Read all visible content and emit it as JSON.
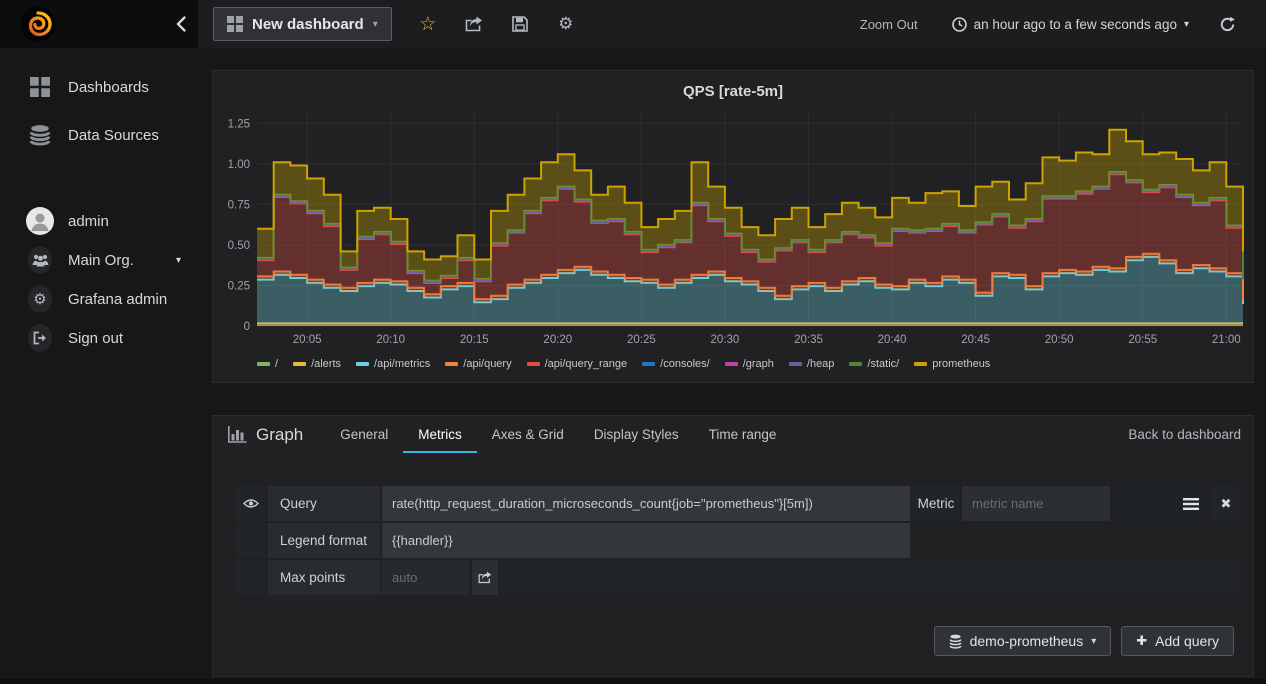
{
  "topnav": {
    "dashboard_title": "New dashboard",
    "zoom_out_label": "Zoom Out",
    "time_range_label": "an hour ago to a few seconds ago"
  },
  "sidebar": {
    "items": [
      "Dashboards",
      "Data Sources"
    ],
    "user": [
      "admin",
      "Main Org.",
      "Grafana admin",
      "Sign out"
    ]
  },
  "editor": {
    "panel_type": "Graph",
    "tabs": [
      "General",
      "Metrics",
      "Axes & Grid",
      "Display Styles",
      "Time range"
    ],
    "active_tab": "Metrics",
    "back_link": "Back to dashboard",
    "query_row": {
      "label": "Query",
      "value": "rate(http_request_duration_microseconds_count{job=\"prometheus\"}[5m])",
      "metric_label": "Metric",
      "metric_placeholder": "metric name"
    },
    "legend_row": {
      "label": "Legend format",
      "value": "{{handler}}"
    },
    "max_points_row": {
      "label": "Max points",
      "placeholder": "auto"
    },
    "datasource_button": "demo-prometheus",
    "add_query_button": "Add query"
  },
  "chart_data": {
    "type": "area",
    "stacked": true,
    "title": "QPS [rate-5m]",
    "xlabel": "",
    "ylabel": "",
    "x_start": "20:02",
    "x_step_minutes": 1,
    "x_ticks": [
      "20:05",
      "20:10",
      "20:15",
      "20:20",
      "20:25",
      "20:30",
      "20:35",
      "20:40",
      "20:45",
      "20:50",
      "20:55",
      "21:00"
    ],
    "x_tick_offsets": [
      3,
      8,
      13,
      18,
      23,
      28,
      33,
      38,
      43,
      48,
      53,
      58
    ],
    "y_ticks": [
      {
        "v": 0,
        "label": "0"
      },
      {
        "v": 0.25,
        "label": "0.25"
      },
      {
        "v": 0.5,
        "label": "0.50"
      },
      {
        "v": 0.75,
        "label": "0.75"
      },
      {
        "v": 1.0,
        "label": "1.00"
      },
      {
        "v": 1.25,
        "label": "1.25"
      }
    ],
    "ylim": [
      0,
      1.32
    ],
    "grid": true,
    "legend_position": "bottom",
    "series": [
      {
        "name": "/",
        "color": "#7EB26D",
        "flat": 0.004,
        "line_width": 1
      },
      {
        "name": "/alerts",
        "color": "#EAB839",
        "flat": 0.012,
        "line_width": 2
      },
      {
        "name": "/api/metrics",
        "color": "#6ED0E0",
        "line_width": 2,
        "values": [
          0.27,
          0.3,
          0.28,
          0.25,
          0.22,
          0.2,
          0.23,
          0.25,
          0.24,
          0.2,
          0.16,
          0.21,
          0.23,
          0.13,
          0.15,
          0.22,
          0.25,
          0.28,
          0.31,
          0.33,
          0.3,
          0.28,
          0.26,
          0.25,
          0.22,
          0.25,
          0.28,
          0.3,
          0.26,
          0.24,
          0.2,
          0.15,
          0.21,
          0.23,
          0.2,
          0.24,
          0.26,
          0.22,
          0.21,
          0.25,
          0.23,
          0.27,
          0.25,
          0.17,
          0.29,
          0.28,
          0.21,
          0.29,
          0.31,
          0.3,
          0.33,
          0.32,
          0.39,
          0.41,
          0.37,
          0.31,
          0.34,
          0.32,
          0.29,
          0.12
        ]
      },
      {
        "name": "/api/query",
        "color": "#EF843C",
        "flat": 0.02,
        "line_width": 2
      },
      {
        "name": "/api/query_range",
        "color": "#E24D42",
        "line_width": 2,
        "values": [
          0.1,
          0.46,
          0.44,
          0.41,
          0.36,
          0.11,
          0.27,
          0.28,
          0.23,
          0.09,
          0.07,
          0.05,
          0.14,
          0.11,
          0.31,
          0.32,
          0.41,
          0.46,
          0.5,
          0.4,
          0.3,
          0.33,
          0.27,
          0.17,
          0.23,
          0.23,
          0.43,
          0.31,
          0.26,
          0.18,
          0.16,
          0.28,
          0.27,
          0.19,
          0.28,
          0.29,
          0.25,
          0.24,
          0.34,
          0.29,
          0.32,
          0.31,
          0.29,
          0.42,
          0.35,
          0.29,
          0.4,
          0.46,
          0.44,
          0.48,
          0.48,
          0.58,
          0.46,
          0.38,
          0.45,
          0.45,
          0.37,
          0.42,
          0.28,
          0.13
        ]
      },
      {
        "name": "/consoles/",
        "color": "#1F78C1",
        "flat": 0.004,
        "line_width": 1
      },
      {
        "name": "/graph",
        "color": "#BA43A9",
        "flat": 0.003,
        "line_width": 1
      },
      {
        "name": "/heap",
        "color": "#705DA0",
        "flat": 0.003,
        "line_width": 1
      },
      {
        "name": "/static/",
        "color": "#508642",
        "flat": 0.004,
        "line_width": 2
      },
      {
        "name": "prometheus",
        "color": "#CCA300",
        "line_width": 2,
        "values": [
          0.18,
          0.2,
          0.22,
          0.2,
          0.18,
          0.1,
          0.16,
          0.15,
          0.14,
          0.12,
          0.13,
          0.12,
          0.14,
          0.12,
          0.2,
          0.22,
          0.2,
          0.22,
          0.2,
          0.18,
          0.16,
          0.2,
          0.18,
          0.14,
          0.16,
          0.18,
          0.25,
          0.2,
          0.16,
          0.14,
          0.15,
          0.18,
          0.2,
          0.14,
          0.16,
          0.18,
          0.17,
          0.16,
          0.19,
          0.17,
          0.22,
          0.2,
          0.15,
          0.22,
          0.2,
          0.16,
          0.22,
          0.24,
          0.22,
          0.24,
          0.2,
          0.26,
          0.24,
          0.22,
          0.2,
          0.22,
          0.2,
          0.22,
          0.24,
          0.16
        ]
      }
    ]
  }
}
